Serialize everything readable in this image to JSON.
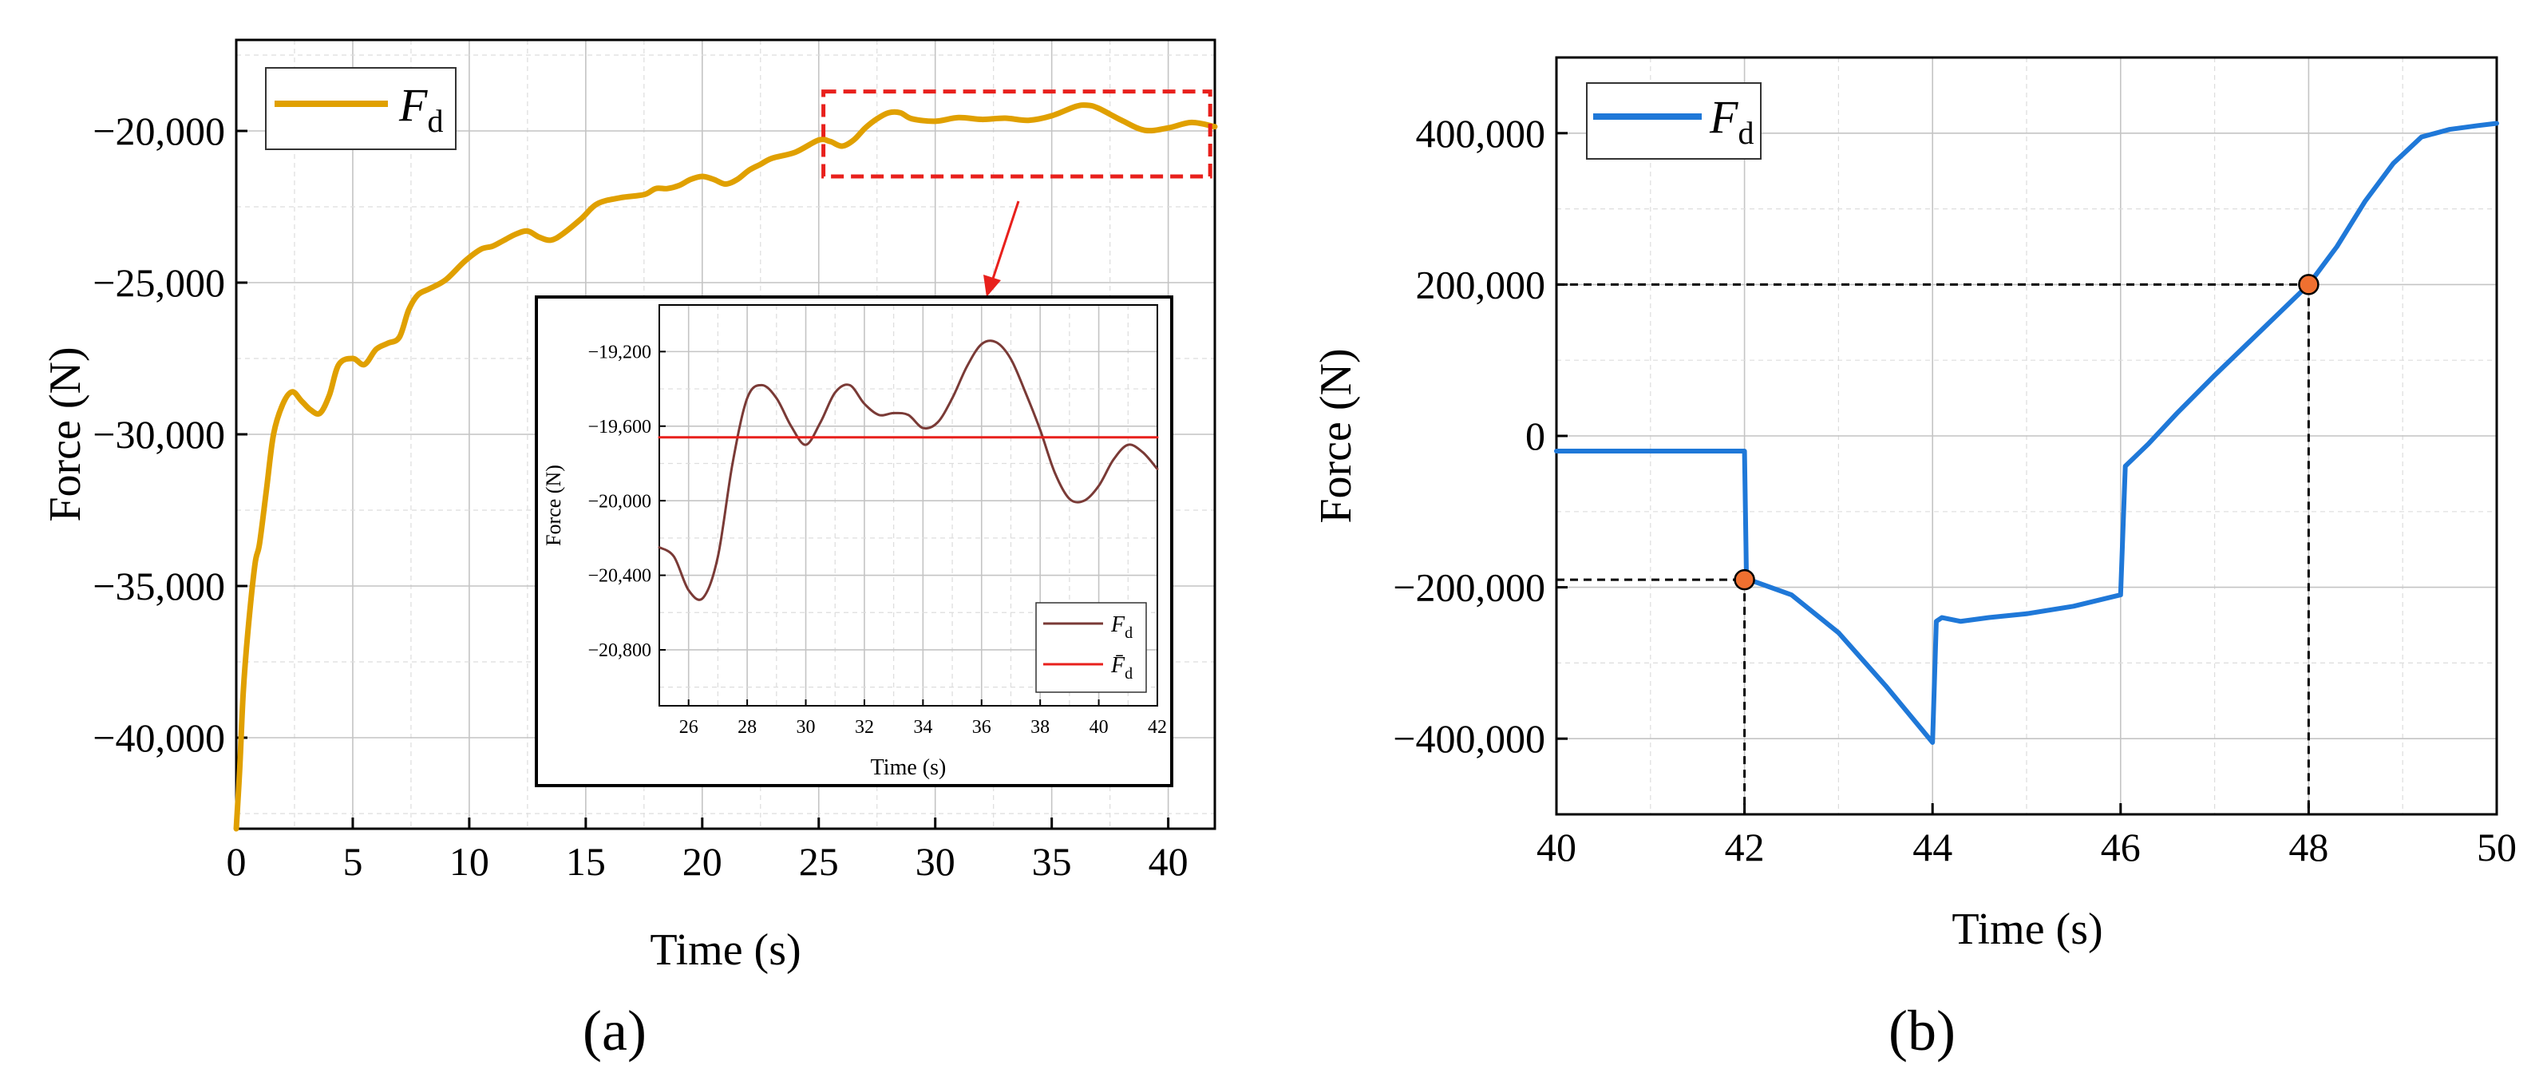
{
  "figure": {
    "panel_a_label": "(a)",
    "panel_b_label": "(b)"
  },
  "chart_data": [
    {
      "id": "a",
      "type": "line",
      "xlabel": "Time (s)",
      "ylabel": "Force (N)",
      "xlim": [
        0,
        42
      ],
      "ylim": [
        -43000,
        -17000
      ],
      "xticks": [
        0,
        5,
        10,
        15,
        20,
        25,
        30,
        35,
        40
      ],
      "xtick_labels": [
        "0",
        "5",
        "10",
        "15",
        "20",
        "25",
        "30",
        "35",
        "40"
      ],
      "yticks": [
        -40000,
        -35000,
        -30000,
        -25000,
        -20000
      ],
      "ytick_labels": [
        "−40,000",
        "−35,000",
        "−30,000",
        "−25,000",
        "−20,000"
      ],
      "grid": true,
      "legend": {
        "position": "top-left",
        "symbol": "F",
        "subscript": "d"
      },
      "highlight_box": {
        "x": [
          25.2,
          41.8
        ],
        "y": [
          -18700,
          -21500
        ]
      },
      "series": [
        {
          "name": "F_d",
          "color": "#e0a000",
          "x": [
            0,
            0.15,
            0.3,
            0.5,
            0.8,
            1.0,
            1.3,
            1.6,
            2.0,
            2.4,
            2.8,
            3.2,
            3.6,
            4.0,
            4.4,
            5.0,
            5.5,
            6.0,
            6.5,
            7.0,
            7.4,
            7.8,
            8.3,
            9.0,
            9.8,
            10.5,
            11.0,
            11.5,
            12.0,
            12.5,
            13.0,
            13.5,
            14.0,
            14.8,
            15.5,
            16.5,
            17.5,
            18.0,
            18.5,
            19.0,
            19.5,
            20.0,
            20.5,
            21.0,
            21.5,
            22.0,
            22.5,
            23.0,
            24.0,
            25.0,
            25.5,
            26.0,
            26.5,
            27.0,
            27.5,
            28.0,
            28.5,
            29.0,
            30.0,
            31.0,
            32.0,
            33.0,
            34.0,
            35.0,
            36.0,
            36.5,
            37.0,
            38.0,
            39.0,
            40.0,
            41.0,
            42.0
          ],
          "y": [
            -43000,
            -41000,
            -38500,
            -36500,
            -34300,
            -33600,
            -31800,
            -30000,
            -29000,
            -28600,
            -28900,
            -29200,
            -29300,
            -28700,
            -27700,
            -27500,
            -27700,
            -27200,
            -27000,
            -26800,
            -25900,
            -25400,
            -25200,
            -24900,
            -24300,
            -23900,
            -23800,
            -23600,
            -23400,
            -23300,
            -23500,
            -23600,
            -23400,
            -22900,
            -22400,
            -22200,
            -22100,
            -21900,
            -21900,
            -21800,
            -21600,
            -21500,
            -21600,
            -21750,
            -21600,
            -21300,
            -21100,
            -20900,
            -20700,
            -20300,
            -20350,
            -20500,
            -20300,
            -19900,
            -19600,
            -19400,
            -19400,
            -19600,
            -19680,
            -19560,
            -19620,
            -19580,
            -19650,
            -19500,
            -19200,
            -19150,
            -19250,
            -19650,
            -19980,
            -19900,
            -19720,
            -19860
          ]
        }
      ]
    },
    {
      "id": "a-inset",
      "type": "line",
      "xlabel": "Time (s)",
      "ylabel": "Force (N)",
      "xlim": [
        25,
        42
      ],
      "ylim": [
        -21100,
        -18950
      ],
      "xticks": [
        26,
        28,
        30,
        32,
        34,
        36,
        38,
        40,
        42
      ],
      "xtick_labels": [
        "26",
        "28",
        "30",
        "32",
        "34",
        "36",
        "38",
        "40",
        "42"
      ],
      "yticks": [
        -20800,
        -20400,
        -20000,
        -19600,
        -19200
      ],
      "ytick_labels": [
        "−20,800",
        "−20,400",
        "−20,000",
        "−19,600",
        "−19,200"
      ],
      "grid": true,
      "legend": {
        "position": "bottom-right"
      },
      "series": [
        {
          "name": "F_d",
          "legend_symbol": "F",
          "legend_subscript": "d",
          "color": "#7a3a36",
          "x": [
            25.0,
            25.5,
            26.0,
            26.5,
            27.0,
            27.5,
            28.0,
            28.5,
            29.0,
            29.5,
            30.0,
            30.5,
            31.0,
            31.5,
            32.0,
            32.5,
            33.0,
            33.5,
            34.0,
            34.5,
            35.0,
            35.5,
            36.0,
            36.5,
            37.0,
            37.5,
            38.0,
            38.5,
            39.0,
            39.5,
            40.0,
            40.5,
            41.0,
            41.5,
            42.0
          ],
          "y": [
            -20250,
            -20300,
            -20480,
            -20520,
            -20300,
            -19800,
            -19450,
            -19380,
            -19450,
            -19600,
            -19700,
            -19580,
            -19420,
            -19380,
            -19480,
            -19540,
            -19530,
            -19540,
            -19610,
            -19580,
            -19450,
            -19280,
            -19160,
            -19150,
            -19240,
            -19420,
            -19620,
            -19850,
            -19990,
            -20000,
            -19920,
            -19780,
            -19700,
            -19740,
            -19830
          ]
        },
        {
          "name": "F_d_mean",
          "legend_symbol": "F̄",
          "legend_subscript": "d",
          "color": "#e8201c",
          "x": [
            25,
            42
          ],
          "y": [
            -19660,
            -19660
          ]
        }
      ]
    },
    {
      "id": "b",
      "type": "line",
      "xlabel": "Time (s)",
      "ylabel": "Force (N)",
      "xlim": [
        40,
        50
      ],
      "ylim": [
        -500000,
        500000
      ],
      "xticks": [
        40,
        42,
        44,
        46,
        48,
        50
      ],
      "xtick_labels": [
        "40",
        "42",
        "44",
        "46",
        "48",
        "50"
      ],
      "yticks": [
        -400000,
        -200000,
        0,
        200000,
        400000
      ],
      "ytick_labels": [
        "−400,000",
        "−200,000",
        "0",
        "200,000",
        "400,000"
      ],
      "grid": true,
      "legend": {
        "position": "top-left",
        "symbol": "F",
        "subscript": "d"
      },
      "markers": [
        {
          "x": 42,
          "y": -190000,
          "color": "#f07030"
        },
        {
          "x": 48,
          "y": 200000,
          "color": "#f07030"
        }
      ],
      "series": [
        {
          "name": "F_d",
          "color": "#1f78d8",
          "x": [
            40,
            42.0,
            42.02,
            42.05,
            42.5,
            43.0,
            43.5,
            44.0,
            44.04,
            44.1,
            44.3,
            44.6,
            45.0,
            45.5,
            46.0,
            46.05,
            46.3,
            46.6,
            47.0,
            47.5,
            48.0,
            48.3,
            48.6,
            48.9,
            49.2,
            49.5,
            49.8,
            50.0
          ],
          "y": [
            -20000,
            -20000,
            -180000,
            -190000,
            -210000,
            -260000,
            -330000,
            -405000,
            -245000,
            -240000,
            -245000,
            -240000,
            -235000,
            -225000,
            -210000,
            -40000,
            -10000,
            30000,
            80000,
            140000,
            200000,
            250000,
            310000,
            360000,
            395000,
            405000,
            410000,
            413000
          ]
        }
      ]
    }
  ]
}
